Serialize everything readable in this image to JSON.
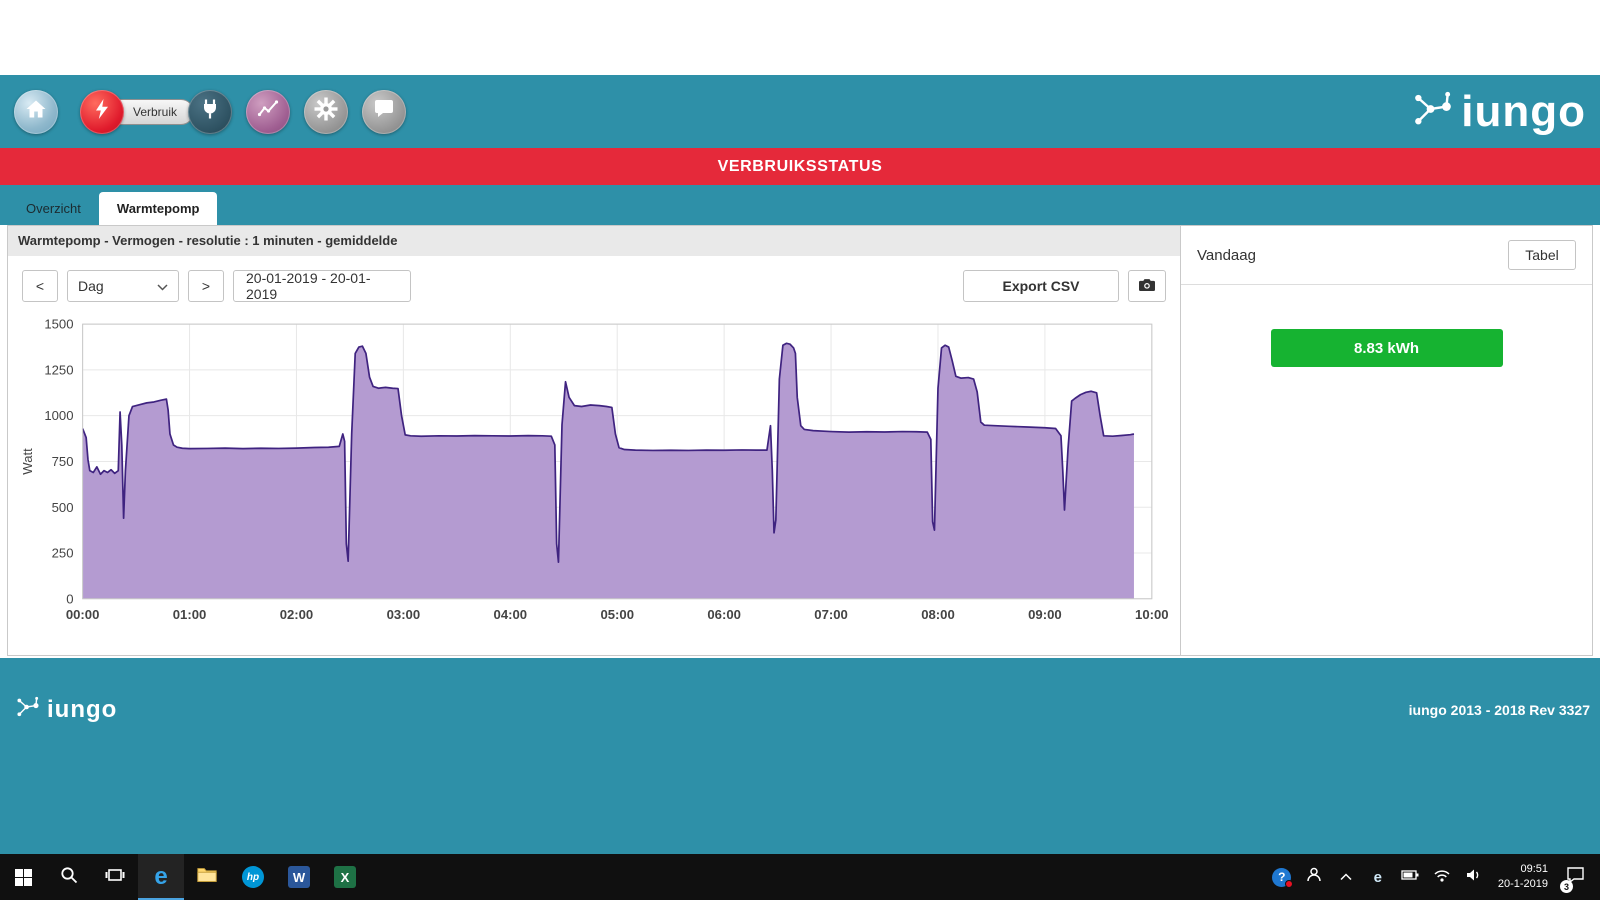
{
  "theme": {
    "teal": "#2e90a8",
    "red": "#e5293a",
    "taskbar": "#101010"
  },
  "header": {
    "verbruik_label": "Verbruik",
    "logo_text": "iungo",
    "icons": [
      "home-icon",
      "lightning-icon",
      "plug-icon",
      "chart-icon",
      "gear-icon",
      "chat-icon"
    ]
  },
  "banner": {
    "title": "VERBRUIKSSTATUS"
  },
  "tabs": {
    "overzicht": "Overzicht",
    "warmtepomp": "Warmtepomp"
  },
  "chart_section": {
    "subtitle": "Warmtepomp - Vermogen - resolutie : 1 minuten - gemiddelde",
    "prev_label": "<",
    "period_value": "Dag",
    "next_label": ">",
    "date_range": "20-01-2019 - 20-01-2019",
    "export_label": "Export CSV",
    "camera_icon": "camera-icon"
  },
  "side_panel": {
    "title": "Vandaag",
    "table_button": "Tabel",
    "total_value": "8.83 kWh",
    "total_color": "#16b331"
  },
  "footer": {
    "logo_text": "iungo",
    "copyright": "iungo 2013 - 2018 Rev 3327"
  },
  "taskbar": {
    "time": "09:51",
    "date": "20-1-2019",
    "notification_count": "3"
  },
  "chart_data": {
    "type": "area",
    "title": "Warmtepomp - Vermogen - resolutie : 1 minuten - gemiddelde",
    "xlabel": "",
    "ylabel": "Watt",
    "ylim": [
      0,
      1500
    ],
    "yticks": [
      0,
      250,
      500,
      750,
      1000,
      1250,
      1500
    ],
    "xlim_minutes": [
      0,
      600
    ],
    "xticks": [
      "00:00",
      "01:00",
      "02:00",
      "03:00",
      "04:00",
      "05:00",
      "06:00",
      "07:00",
      "08:00",
      "09:00",
      "10:00"
    ],
    "line_color": "#3f2380",
    "fill_color": "#b49bd1",
    "grid": true,
    "legend": false,
    "points": [
      [
        0,
        930
      ],
      [
        2,
        880
      ],
      [
        3,
        760
      ],
      [
        4,
        700
      ],
      [
        6,
        690
      ],
      [
        8,
        720
      ],
      [
        10,
        680
      ],
      [
        12,
        700
      ],
      [
        14,
        690
      ],
      [
        16,
        705
      ],
      [
        18,
        685
      ],
      [
        20,
        700
      ],
      [
        21,
        1020
      ],
      [
        22,
        840
      ],
      [
        23,
        440
      ],
      [
        24,
        700
      ],
      [
        26,
        1000
      ],
      [
        28,
        1050
      ],
      [
        32,
        1060
      ],
      [
        36,
        1070
      ],
      [
        40,
        1075
      ],
      [
        44,
        1085
      ],
      [
        47,
        1090
      ],
      [
        48,
        1030
      ],
      [
        49,
        900
      ],
      [
        51,
        840
      ],
      [
        53,
        828
      ],
      [
        56,
        822
      ],
      [
        60,
        820
      ],
      [
        70,
        821
      ],
      [
        80,
        823
      ],
      [
        90,
        820
      ],
      [
        100,
        822
      ],
      [
        110,
        821
      ],
      [
        120,
        823
      ],
      [
        130,
        826
      ],
      [
        138,
        828
      ],
      [
        144,
        832
      ],
      [
        146,
        900
      ],
      [
        147,
        860
      ],
      [
        148,
        300
      ],
      [
        149,
        205
      ],
      [
        151,
        900
      ],
      [
        153,
        1340
      ],
      [
        155,
        1375
      ],
      [
        157,
        1380
      ],
      [
        159,
        1340
      ],
      [
        161,
        1210
      ],
      [
        163,
        1160
      ],
      [
        166,
        1150
      ],
      [
        170,
        1155
      ],
      [
        174,
        1150
      ],
      [
        177,
        1148
      ],
      [
        179,
        1000
      ],
      [
        181,
        895
      ],
      [
        184,
        890
      ],
      [
        190,
        888
      ],
      [
        200,
        890
      ],
      [
        210,
        889
      ],
      [
        220,
        891
      ],
      [
        230,
        890
      ],
      [
        240,
        889
      ],
      [
        250,
        891
      ],
      [
        258,
        890
      ],
      [
        263,
        888
      ],
      [
        265,
        840
      ],
      [
        266,
        300
      ],
      [
        267,
        200
      ],
      [
        269,
        950
      ],
      [
        271,
        1185
      ],
      [
        273,
        1100
      ],
      [
        276,
        1055
      ],
      [
        280,
        1050
      ],
      [
        285,
        1058
      ],
      [
        290,
        1055
      ],
      [
        294,
        1050
      ],
      [
        297,
        1045
      ],
      [
        299,
        900
      ],
      [
        301,
        825
      ],
      [
        304,
        815
      ],
      [
        310,
        812
      ],
      [
        320,
        810
      ],
      [
        330,
        811
      ],
      [
        340,
        810
      ],
      [
        350,
        812
      ],
      [
        360,
        811
      ],
      [
        370,
        813
      ],
      [
        378,
        812
      ],
      [
        384,
        812
      ],
      [
        386,
        945
      ],
      [
        387,
        700
      ],
      [
        388,
        360
      ],
      [
        389,
        430
      ],
      [
        391,
        1200
      ],
      [
        393,
        1385
      ],
      [
        395,
        1395
      ],
      [
        397,
        1390
      ],
      [
        399,
        1370
      ],
      [
        400,
        1340
      ],
      [
        401,
        1100
      ],
      [
        403,
        945
      ],
      [
        405,
        925
      ],
      [
        410,
        918
      ],
      [
        420,
        913
      ],
      [
        430,
        910
      ],
      [
        440,
        912
      ],
      [
        450,
        911
      ],
      [
        460,
        913
      ],
      [
        468,
        912
      ],
      [
        474,
        910
      ],
      [
        476,
        870
      ],
      [
        477,
        420
      ],
      [
        478,
        375
      ],
      [
        480,
        1150
      ],
      [
        482,
        1370
      ],
      [
        484,
        1385
      ],
      [
        486,
        1375
      ],
      [
        488,
        1300
      ],
      [
        490,
        1215
      ],
      [
        493,
        1205
      ],
      [
        497,
        1208
      ],
      [
        500,
        1200
      ],
      [
        502,
        1130
      ],
      [
        504,
        965
      ],
      [
        506,
        948
      ],
      [
        512,
        945
      ],
      [
        520,
        942
      ],
      [
        530,
        938
      ],
      [
        540,
        934
      ],
      [
        546,
        930
      ],
      [
        549,
        890
      ],
      [
        550,
        700
      ],
      [
        551,
        485
      ],
      [
        553,
        820
      ],
      [
        555,
        1080
      ],
      [
        557,
        1095
      ],
      [
        560,
        1115
      ],
      [
        563,
        1128
      ],
      [
        566,
        1133
      ],
      [
        569,
        1125
      ],
      [
        571,
        1000
      ],
      [
        573,
        890
      ],
      [
        578,
        888
      ],
      [
        583,
        892
      ],
      [
        588,
        896
      ],
      [
        590,
        900
      ]
    ]
  }
}
